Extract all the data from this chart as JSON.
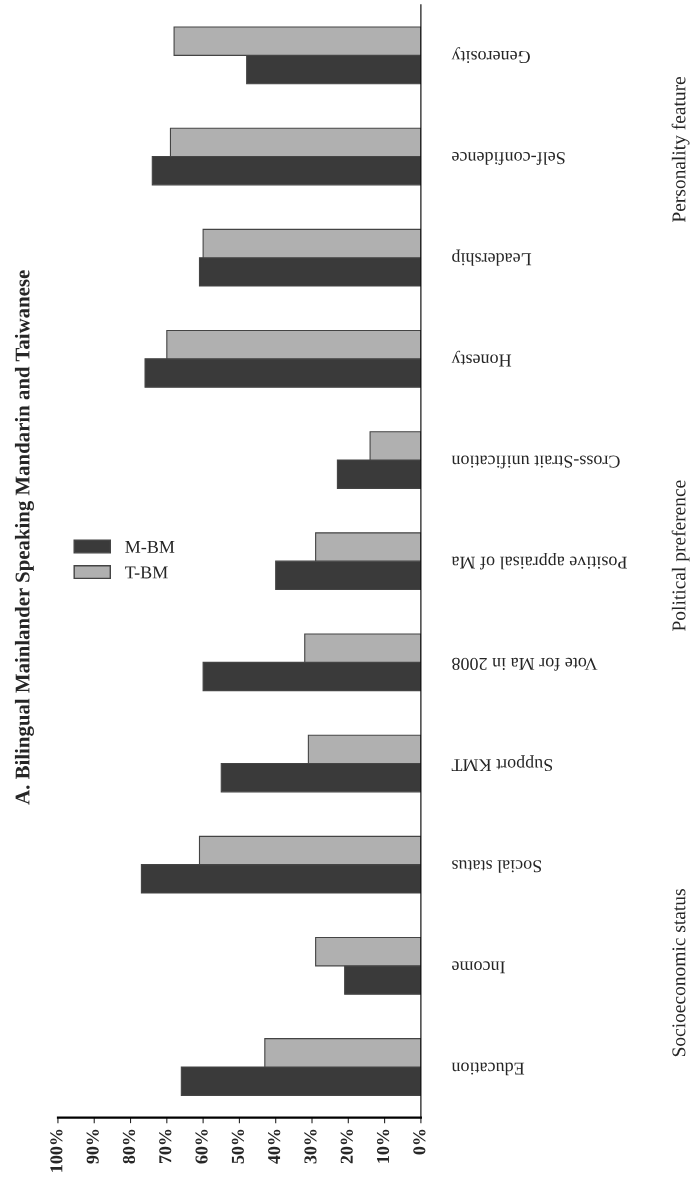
{
  "chart_data": {
    "type": "bar",
    "orientation": "horizontal",
    "title": "A. Bilingual Mainlander Speaking Mandarin and Taiwanese",
    "categories": [
      "Generosity",
      "Self-confidence",
      "Leadership",
      "Honesty",
      "Cross-Strait unification",
      "Positive appraisal of Ma",
      "Vote for Ma in 2008",
      "Support KMT",
      "Social status",
      "Income",
      "Education"
    ],
    "series": [
      {
        "name": "M-BM",
        "color": "#3a3a3a",
        "values": [
          48,
          74,
          61,
          76,
          23,
          40,
          60,
          55,
          77,
          21,
          66
        ]
      },
      {
        "name": "T-BM",
        "color": "#b0b0b0",
        "values": [
          68,
          69,
          60,
          70,
          14,
          29,
          32,
          31,
          61,
          29,
          43
        ]
      }
    ],
    "xlim": [
      100,
      0
    ],
    "xticks": [
      {
        "value": 100,
        "label": "100%"
      },
      {
        "value": 90,
        "label": "90%"
      },
      {
        "value": 80,
        "label": "80%"
      },
      {
        "value": 70,
        "label": "70%"
      },
      {
        "value": 60,
        "label": "60%"
      },
      {
        "value": 50,
        "label": "50%"
      },
      {
        "value": 40,
        "label": "40%"
      },
      {
        "value": 30,
        "label": "30%"
      },
      {
        "value": 20,
        "label": "20%"
      },
      {
        "value": 10,
        "label": "10%"
      },
      {
        "value": 0,
        "label": "0%"
      }
    ],
    "annotations": [
      "Personality feature",
      "Political preference",
      "Socioeconomic status"
    ],
    "legend": "left",
    "grid": false
  }
}
